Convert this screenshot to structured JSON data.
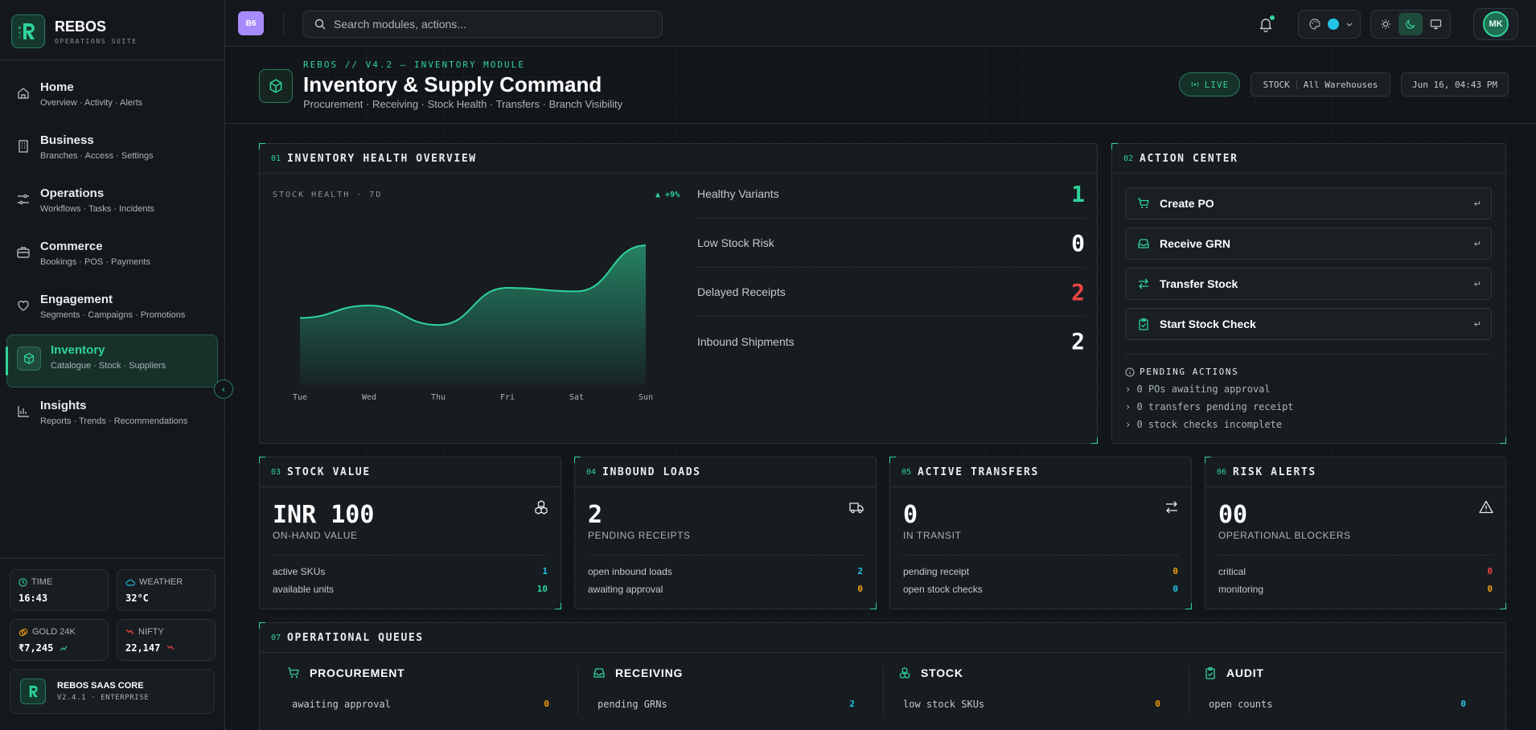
{
  "brand": {
    "name": "REBOS",
    "subtitle": "OPERATIONS SUITE"
  },
  "sidebar": {
    "items": [
      {
        "label": "Home",
        "sub": "Overview · Activity · Alerts"
      },
      {
        "label": "Business",
        "sub": "Branches · Access · Settings"
      },
      {
        "label": "Operations",
        "sub": "Workflows · Tasks · Incidents"
      },
      {
        "label": "Commerce",
        "sub": "Bookings · POS · Payments"
      },
      {
        "label": "Engagement",
        "sub": "Segments · Campaigns · Promotions"
      },
      {
        "label": "Inventory",
        "sub": "Catalogue · Stock · Suppliers",
        "active": true
      },
      {
        "label": "Insights",
        "sub": "Reports · Trends · Recommendations"
      }
    ],
    "widgets": {
      "time": {
        "label": "TIME",
        "value": "16:43"
      },
      "weather": {
        "label": "WEATHER",
        "value": "32°C"
      },
      "gold": {
        "label": "GOLD 24K",
        "value": "₹7,245"
      },
      "nifty": {
        "label": "NIFTY",
        "value": "22,147"
      }
    },
    "core": {
      "title": "REBOS SAAS CORE",
      "version": "V2.4.1 · ENTERPRISE"
    }
  },
  "topbar": {
    "workspace_badge": "B6",
    "search_placeholder": "Search modules, actions...",
    "avatar_initials": "MK"
  },
  "header": {
    "kicker": "REBOS // V4.2 — INVENTORY MODULE",
    "title": "Inventory & Supply Command",
    "subtitle": "Procurement · Receiving · Stock Health · Transfers · Branch Visibility",
    "live": "LIVE",
    "stock_label": "STOCK",
    "stock_scope": "All Warehouses",
    "datetime": "Jun 16, 04:43 PM"
  },
  "health": {
    "num": "01",
    "title": "INVENTORY HEALTH OVERVIEW",
    "chart_label": "STOCK HEALTH · 7D",
    "delta": "▲ +9%",
    "metrics": [
      {
        "label": "Healthy Variants",
        "value": "1",
        "color": "#2fd39a"
      },
      {
        "label": "Low Stock Risk",
        "value": "0",
        "color": "#ffffff"
      },
      {
        "label": "Delayed Receipts",
        "value": "2",
        "color": "#ef4444"
      },
      {
        "label": "Inbound Shipments",
        "value": "2",
        "color": "#ffffff"
      }
    ]
  },
  "chart_data": {
    "type": "area",
    "title": "STOCK HEALTH · 7D",
    "x": [
      "Tue",
      "Wed",
      "Thu",
      "Fri",
      "Sat",
      "Sun"
    ],
    "values": [
      38,
      45,
      34,
      55,
      53,
      79
    ],
    "ylim": [
      0,
      100
    ],
    "grid": false,
    "color": "#2fd39a"
  },
  "actions": {
    "num": "02",
    "title": "ACTION CENTER",
    "buttons": [
      {
        "label": "Create PO",
        "icon": "cart-icon"
      },
      {
        "label": "Receive GRN",
        "icon": "inbox-icon"
      },
      {
        "label": "Transfer Stock",
        "icon": "transfer-icon"
      },
      {
        "label": "Start Stock Check",
        "icon": "clipboard-check-icon"
      }
    ],
    "enter_glyph": "↵",
    "pending_title": "PENDING ACTIONS",
    "pending": [
      "› 0 POs awaiting approval",
      "› 0 transfers pending receipt",
      "› 0 stock checks incomplete"
    ]
  },
  "stats": [
    {
      "num": "03",
      "title": "STOCK VALUE",
      "big": "INR 100",
      "caption": "ON-HAND VALUE",
      "icon": "boxes-icon",
      "rows": [
        {
          "label": "active SKUs",
          "value": "1",
          "color": "#22c3e6"
        },
        {
          "label": "available units",
          "value": "10",
          "color": "#2fd39a"
        }
      ]
    },
    {
      "num": "04",
      "title": "INBOUND LOADS",
      "big": "2",
      "caption": "PENDING RECEIPTS",
      "icon": "truck-icon",
      "rows": [
        {
          "label": "open inbound loads",
          "value": "2",
          "color": "#22c3e6"
        },
        {
          "label": "awaiting approval",
          "value": "0",
          "color": "#f59e0b"
        }
      ]
    },
    {
      "num": "05",
      "title": "ACTIVE TRANSFERS",
      "big": "0",
      "caption": "IN TRANSIT",
      "icon": "transfer-icon",
      "rows": [
        {
          "label": "pending receipt",
          "value": "0",
          "color": "#f59e0b"
        },
        {
          "label": "open stock checks",
          "value": "0",
          "color": "#22c3e6"
        }
      ]
    },
    {
      "num": "06",
      "title": "RISK ALERTS",
      "big": "00",
      "caption": "OPERATIONAL BLOCKERS",
      "icon": "warning-icon",
      "rows": [
        {
          "label": "critical",
          "value": "0",
          "color": "#ef4444"
        },
        {
          "label": "monitoring",
          "value": "0",
          "color": "#f59e0b"
        }
      ]
    }
  ],
  "queues": {
    "num": "07",
    "title": "OPERATIONAL QUEUES",
    "columns": [
      {
        "title": "PROCUREMENT",
        "icon": "cart-icon",
        "row_label": "awaiting approval",
        "row_value": "0",
        "color": "#f59e0b"
      },
      {
        "title": "RECEIVING",
        "icon": "inbox-icon",
        "row_label": "pending GRNs",
        "row_value": "2",
        "color": "#22c3e6"
      },
      {
        "title": "STOCK",
        "icon": "boxes-icon",
        "row_label": "low stock SKUs",
        "row_value": "0",
        "color": "#f59e0b"
      },
      {
        "title": "AUDIT",
        "icon": "clipboard-check-icon",
        "row_label": "open counts",
        "row_value": "0",
        "color": "#22c3e6"
      }
    ]
  }
}
